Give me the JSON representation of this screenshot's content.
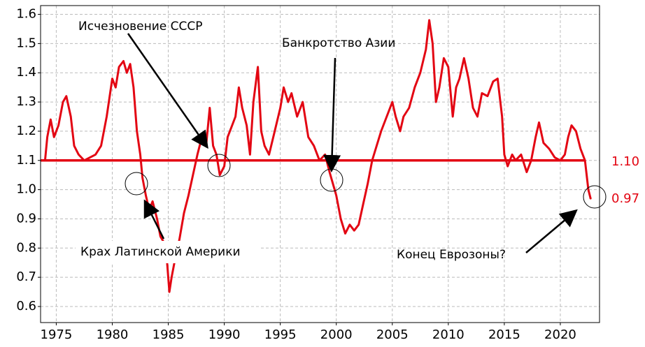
{
  "chart_data": {
    "type": "line",
    "x": [
      1974.0,
      1974.2,
      1974.5,
      1974.8,
      1975.2,
      1975.6,
      1975.9,
      1976.3,
      1976.6,
      1977.0,
      1977.5,
      1978.0,
      1978.5,
      1979.0,
      1979.5,
      1980.0,
      1980.3,
      1980.6,
      1981.0,
      1981.3,
      1981.6,
      1981.9,
      1982.2,
      1982.5,
      1982.7,
      1983.0,
      1983.3,
      1983.6,
      1984.0,
      1984.3,
      1984.6,
      1984.9,
      1985.1,
      1985.3,
      1985.6,
      1986.0,
      1986.4,
      1986.8,
      1987.2,
      1987.6,
      1988.0,
      1988.4,
      1988.7,
      1989.0,
      1989.3,
      1989.6,
      1990.0,
      1990.3,
      1990.7,
      1991.0,
      1991.3,
      1991.6,
      1992.0,
      1992.3,
      1992.6,
      1993.0,
      1993.3,
      1993.6,
      1994.0,
      1994.5,
      1995.0,
      1995.3,
      1995.7,
      1996.0,
      1996.5,
      1997.0,
      1997.5,
      1998.0,
      1998.5,
      1999.0,
      1999.4,
      1999.7,
      2000.0,
      2000.4,
      2000.8,
      2001.2,
      2001.6,
      2002.0,
      2002.4,
      2002.8,
      2003.2,
      2003.6,
      2004.0,
      2004.5,
      2005.0,
      2005.3,
      2005.7,
      2006.0,
      2006.5,
      2007.0,
      2007.5,
      2008.0,
      2008.3,
      2008.6,
      2008.9,
      2009.2,
      2009.6,
      2010.0,
      2010.4,
      2010.7,
      2011.0,
      2011.4,
      2011.8,
      2012.2,
      2012.6,
      2013.0,
      2013.5,
      2014.0,
      2014.4,
      2014.8,
      2015.0,
      2015.3,
      2015.7,
      2016.0,
      2016.5,
      2017.0,
      2017.4,
      2017.8,
      2018.1,
      2018.5,
      2019.0,
      2019.5,
      2020.0,
      2020.4,
      2020.7,
      2021.0,
      2021.4,
      2021.8,
      2022.2,
      2022.5,
      2022.7
    ],
    "series": [
      {
        "color": "#e30613",
        "values": [
          1.1,
          1.18,
          1.24,
          1.18,
          1.22,
          1.3,
          1.32,
          1.25,
          1.15,
          1.12,
          1.1,
          1.11,
          1.12,
          1.15,
          1.25,
          1.38,
          1.35,
          1.42,
          1.44,
          1.4,
          1.43,
          1.35,
          1.2,
          1.12,
          1.04,
          0.98,
          0.93,
          0.96,
          0.9,
          0.84,
          0.82,
          0.75,
          0.65,
          0.7,
          0.76,
          0.83,
          0.92,
          0.98,
          1.05,
          1.12,
          1.18,
          1.16,
          1.28,
          1.15,
          1.12,
          1.05,
          1.08,
          1.18,
          1.22,
          1.25,
          1.35,
          1.28,
          1.22,
          1.12,
          1.3,
          1.42,
          1.2,
          1.15,
          1.12,
          1.2,
          1.28,
          1.35,
          1.3,
          1.33,
          1.25,
          1.3,
          1.18,
          1.15,
          1.1,
          1.12,
          1.06,
          1.02,
          0.98,
          0.9,
          0.85,
          0.88,
          0.86,
          0.88,
          0.95,
          1.02,
          1.1,
          1.15,
          1.2,
          1.25,
          1.3,
          1.25,
          1.2,
          1.25,
          1.28,
          1.35,
          1.4,
          1.48,
          1.58,
          1.5,
          1.3,
          1.35,
          1.45,
          1.42,
          1.25,
          1.35,
          1.38,
          1.45,
          1.38,
          1.28,
          1.25,
          1.33,
          1.32,
          1.37,
          1.38,
          1.25,
          1.12,
          1.08,
          1.12,
          1.1,
          1.12,
          1.06,
          1.1,
          1.18,
          1.23,
          1.16,
          1.14,
          1.11,
          1.1,
          1.12,
          1.18,
          1.22,
          1.2,
          1.14,
          1.1,
          1.0,
          0.97
        ]
      }
    ],
    "reference_line": {
      "value": 1.1,
      "label": "1.10"
    },
    "end_label": {
      "value": 0.97,
      "label": "0.97"
    },
    "annotations": [
      "Исчезновение СССР",
      "Банкротство Азии",
      "Крах Латинской Америки",
      "Конец Еврозоны?"
    ],
    "xlim": [
      1973.6,
      2023.5
    ],
    "xticks": [
      1975,
      1980,
      1985,
      1990,
      1995,
      2000,
      2005,
      2010,
      2015,
      2020
    ],
    "ylim": [
      0.545,
      1.63
    ],
    "yticks": [
      0.6,
      0.7,
      0.8,
      0.9,
      {
        "value": 1,
        "label": "1.0"
      },
      1.1,
      1.2,
      1.3,
      1.4,
      1.5,
      1.6
    ],
    "grid": true
  }
}
